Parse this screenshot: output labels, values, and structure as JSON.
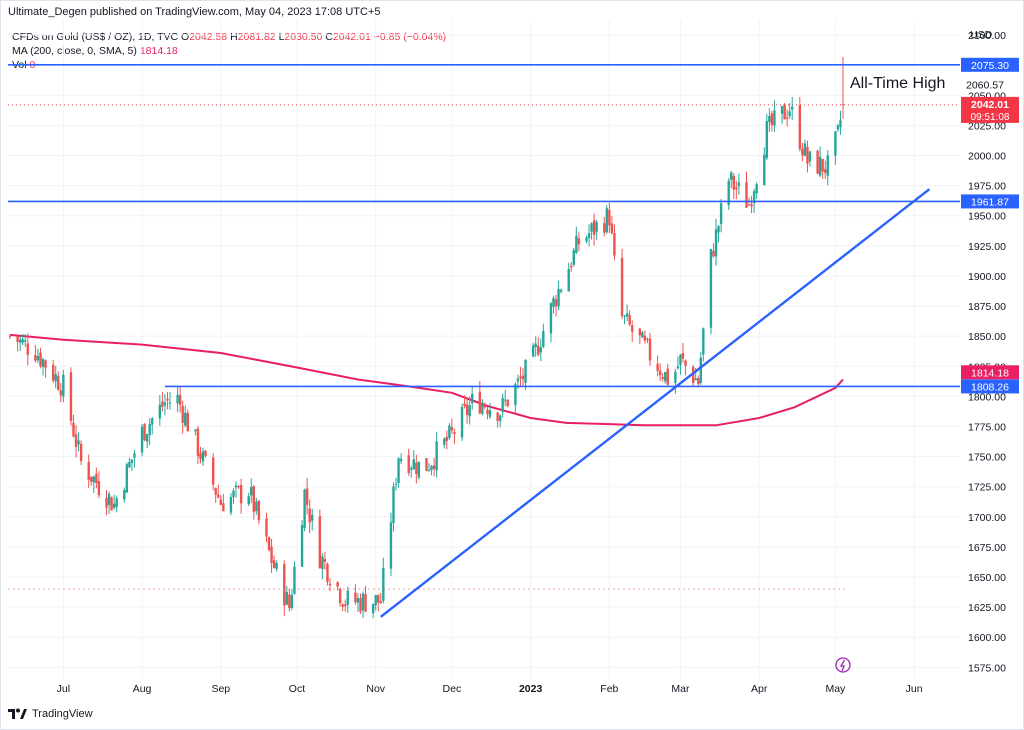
{
  "header": {
    "publisher_line": "Ultimate_Degen published on TradingView.com, May 04, 2023 17:08 UTC+5"
  },
  "legend": {
    "symbol": "CFDs on Gold (US$ / OZ), 1D, TVC",
    "o_label": "O",
    "o_value": "2042.58",
    "h_label": "H",
    "h_value": "2081.82",
    "l_label": "L",
    "l_value": "2030.50",
    "c_label": "C",
    "c_value": "2042.01",
    "change": "−0.85 (−0.04%)",
    "ma_label": "MA (200, close, 0, SMA, 5)",
    "ma_value": "1814.18",
    "vol_label": "Vol",
    "vol_value": "0"
  },
  "footer": {
    "brand": "TradingView"
  },
  "colors": {
    "up": "#26a69a",
    "down": "#ef5350",
    "ma": "#e91e63",
    "level_line": "#2962ff",
    "price_badge": "#f23645",
    "grid": "#f0f3fa"
  },
  "chart_data": {
    "type": "candlestick",
    "currency": "USD",
    "ylim": [
      1565,
      2110
    ],
    "y_ticks": [
      1575,
      1600,
      1625,
      1650,
      1675,
      1700,
      1725,
      1750,
      1775,
      1800,
      1825,
      1850,
      1875,
      1900,
      1925,
      1950,
      1975,
      2000,
      2025,
      2050,
      2100
    ],
    "x_ticks": [
      "Jul",
      "Aug",
      "Sep",
      "Oct",
      "Nov",
      "Dec",
      "2023",
      "Feb",
      "Mar",
      "Apr",
      "May",
      "Jun"
    ],
    "annotation": "All-Time High",
    "horizontal_levels": [
      {
        "value": 2075.3,
        "label": "2075.30"
      },
      {
        "value": 1961.87,
        "label": "1961.87"
      },
      {
        "value": 1808.26,
        "label": "1808.26"
      }
    ],
    "price_labels": [
      {
        "label": "2060.57"
      },
      {
        "label": "2042.01",
        "sub": "09:51:08"
      },
      {
        "label": "1814.18"
      }
    ],
    "trendline": {
      "from": {
        "date": "2022-11-03",
        "value": 1617
      },
      "to": {
        "date": "2023-06-07",
        "value": 1972
      }
    },
    "ma_series": [
      {
        "date": "2022-06-10",
        "value": 1851
      },
      {
        "date": "2022-07-01",
        "value": 1847
      },
      {
        "date": "2022-08-01",
        "value": 1843
      },
      {
        "date": "2022-09-01",
        "value": 1836
      },
      {
        "date": "2022-10-01",
        "value": 1824
      },
      {
        "date": "2022-10-25",
        "value": 1814
      },
      {
        "date": "2022-11-15",
        "value": 1808
      },
      {
        "date": "2022-12-01",
        "value": 1803
      },
      {
        "date": "2022-12-15",
        "value": 1792
      },
      {
        "date": "2023-01-01",
        "value": 1782
      },
      {
        "date": "2023-01-15",
        "value": 1778
      },
      {
        "date": "2023-02-01",
        "value": 1777
      },
      {
        "date": "2023-02-15",
        "value": 1776
      },
      {
        "date": "2023-03-01",
        "value": 1776
      },
      {
        "date": "2023-03-15",
        "value": 1776
      },
      {
        "date": "2023-04-01",
        "value": 1782
      },
      {
        "date": "2023-04-15",
        "value": 1791
      },
      {
        "date": "2023-05-01",
        "value": 1807
      },
      {
        "date": "2023-05-04",
        "value": 1814
      }
    ],
    "closes": [
      {
        "date": "2022-06-10",
        "value": 1850
      },
      {
        "date": "2022-06-20",
        "value": 1838
      },
      {
        "date": "2022-07-01",
        "value": 1808
      },
      {
        "date": "2022-07-08",
        "value": 1745
      },
      {
        "date": "2022-07-21",
        "value": 1710
      },
      {
        "date": "2022-08-01",
        "value": 1770
      },
      {
        "date": "2022-08-10",
        "value": 1795
      },
      {
        "date": "2022-08-15",
        "value": 1798
      },
      {
        "date": "2022-08-26",
        "value": 1742
      },
      {
        "date": "2022-09-01",
        "value": 1712
      },
      {
        "date": "2022-09-12",
        "value": 1722
      },
      {
        "date": "2022-09-20",
        "value": 1670
      },
      {
        "date": "2022-09-28",
        "value": 1625
      },
      {
        "date": "2022-10-04",
        "value": 1720
      },
      {
        "date": "2022-10-10",
        "value": 1668
      },
      {
        "date": "2022-10-20",
        "value": 1630
      },
      {
        "date": "2022-11-03",
        "value": 1630
      },
      {
        "date": "2022-11-10",
        "value": 1752
      },
      {
        "date": "2022-11-20",
        "value": 1740
      },
      {
        "date": "2022-12-01",
        "value": 1768
      },
      {
        "date": "2022-12-10",
        "value": 1798
      },
      {
        "date": "2022-12-20",
        "value": 1788
      },
      {
        "date": "2023-01-01",
        "value": 1826
      },
      {
        "date": "2023-01-10",
        "value": 1878
      },
      {
        "date": "2023-01-20",
        "value": 1928
      },
      {
        "date": "2023-02-01",
        "value": 1950
      },
      {
        "date": "2023-02-05",
        "value": 1868
      },
      {
        "date": "2023-02-15",
        "value": 1840
      },
      {
        "date": "2023-02-25",
        "value": 1812
      },
      {
        "date": "2023-03-01",
        "value": 1830
      },
      {
        "date": "2023-03-08",
        "value": 1812
      },
      {
        "date": "2023-03-13",
        "value": 1915
      },
      {
        "date": "2023-03-20",
        "value": 1980
      },
      {
        "date": "2023-03-28",
        "value": 1960
      },
      {
        "date": "2023-04-04",
        "value": 2020
      },
      {
        "date": "2023-04-13",
        "value": 2040
      },
      {
        "date": "2023-04-20",
        "value": 1995
      },
      {
        "date": "2023-04-28",
        "value": 1990
      },
      {
        "date": "2023-05-02",
        "value": 2016
      },
      {
        "date": "2023-05-04",
        "value": 2042
      }
    ],
    "last_candle": {
      "date": "2023-05-04",
      "open": 2042.58,
      "high": 2081.82,
      "low": 2030.5,
      "close": 2042.01
    }
  }
}
